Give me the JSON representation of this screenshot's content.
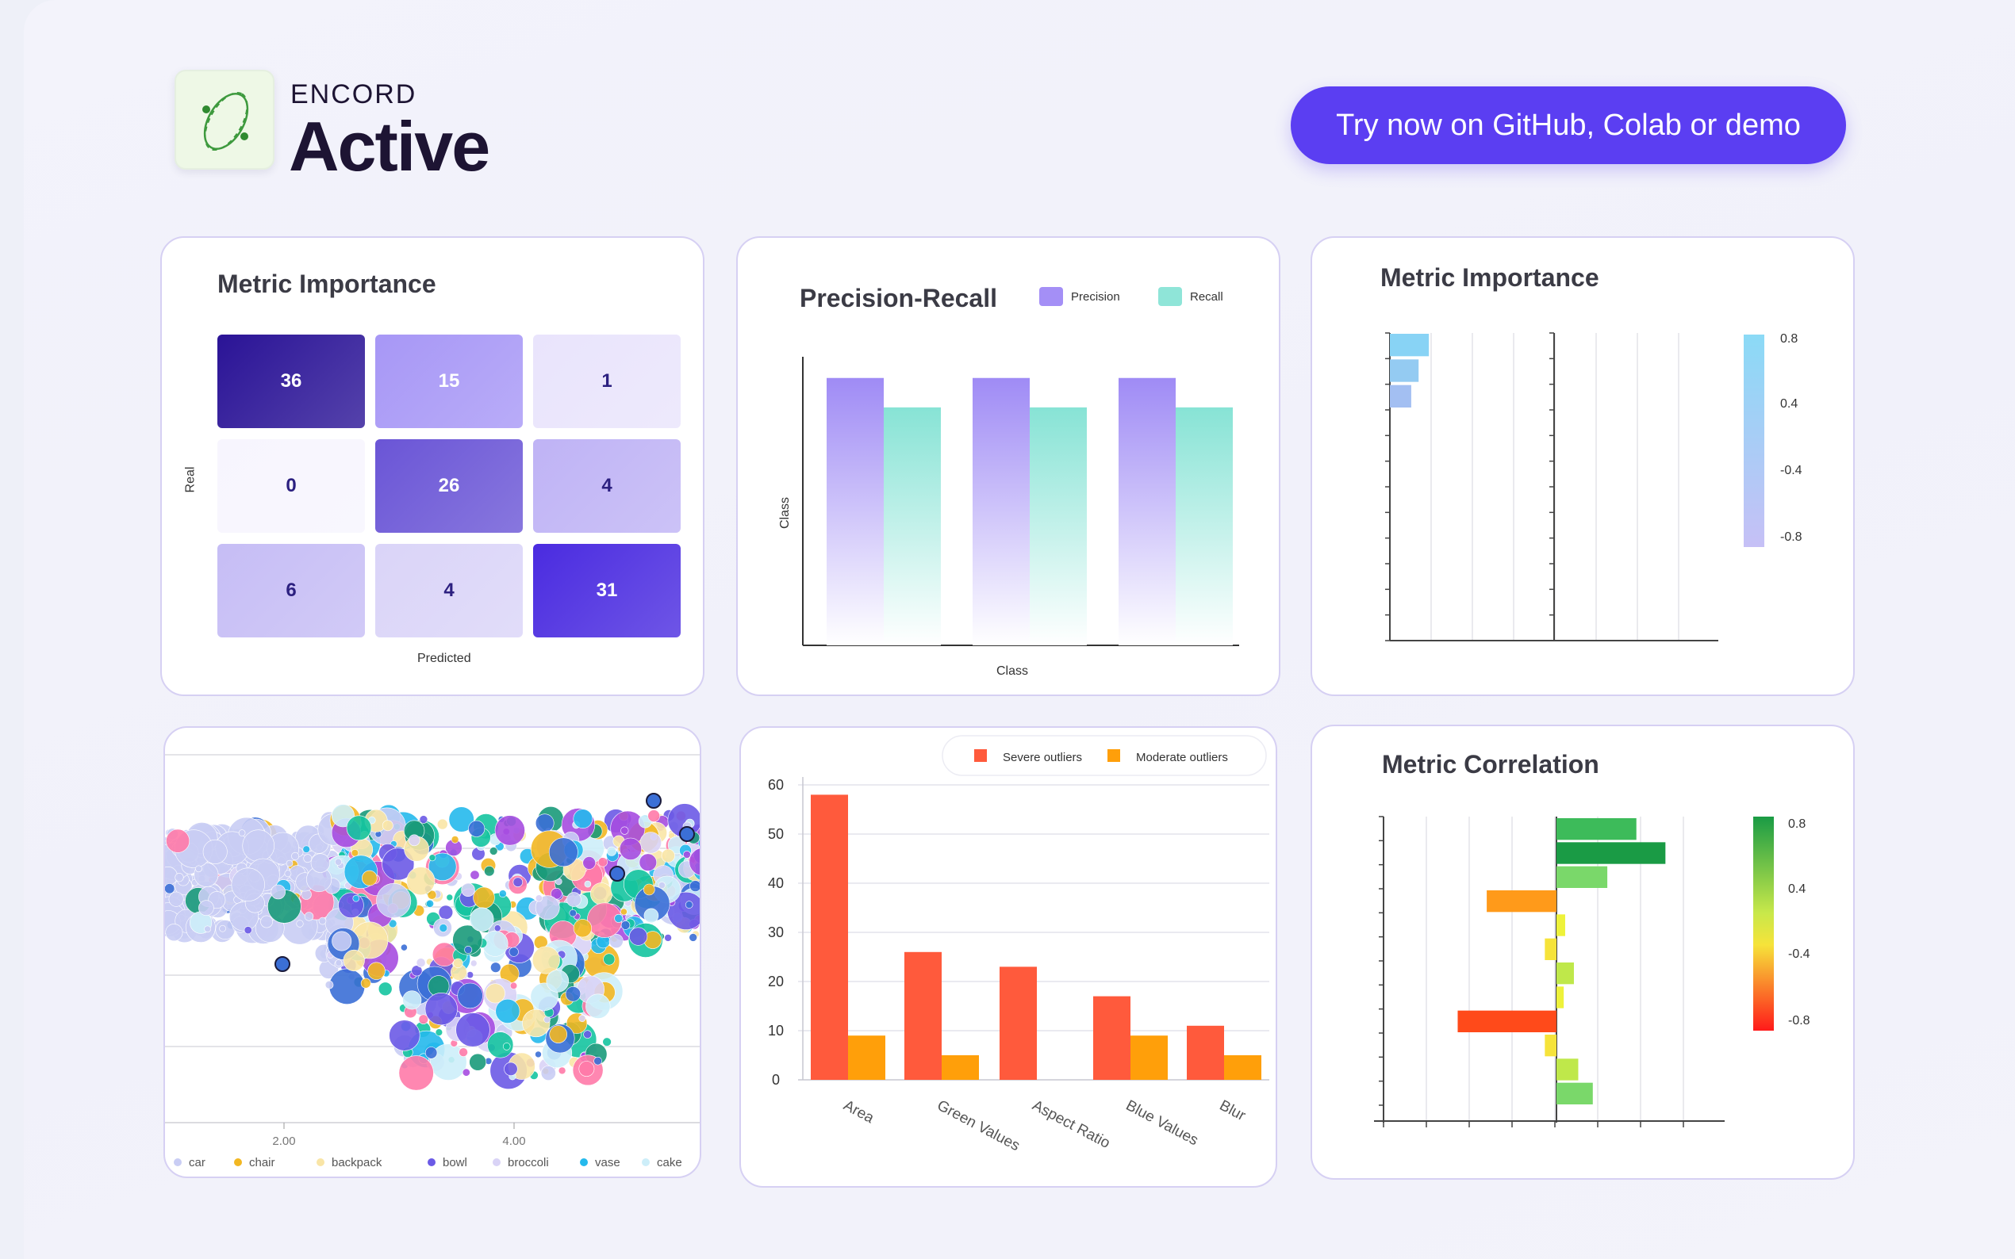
{
  "header": {
    "brand_small": "ENCORD",
    "brand_big": "Active",
    "cta_label": "Try now on GitHub, Colab or demo"
  },
  "confusion_card": {
    "title": "Metric Importance",
    "xlabel": "Predicted",
    "ylabel": "Real",
    "cells": [
      {
        "value": "36",
        "bg": "#2a1396",
        "fg": "#ffffff"
      },
      {
        "value": "15",
        "bg": "#a797f6",
        "fg": "#ffffff"
      },
      {
        "value": "1",
        "bg": "#e9e4fc",
        "fg": "#2c2080"
      },
      {
        "value": "0",
        "bg": "#f7f5fe",
        "fg": "#2c2080"
      },
      {
        "value": "26",
        "bg": "#6a55d6",
        "fg": "#ffffff"
      },
      {
        "value": "4",
        "bg": "#bfb3f5",
        "fg": "#2c2080"
      },
      {
        "value": "6",
        "bg": "#c6bdf5",
        "fg": "#2c2080"
      },
      {
        "value": "4",
        "bg": "#dad4f8",
        "fg": "#2c2080"
      },
      {
        "value": "31",
        "bg": "#4a2be0",
        "fg": "#ffffff"
      }
    ]
  },
  "pr_card": {
    "title": "Precision-Recall",
    "xlabel": "Class",
    "ylabel": "Class",
    "legend": [
      {
        "label": "Precision",
        "color": "#a48ff6"
      },
      {
        "label": "Recall",
        "color": "#8fe5d8"
      }
    ]
  },
  "importance_card": {
    "title": "Metric Importance",
    "colorbar_ticks": [
      "0.8",
      "0.4",
      "-0.4",
      "-0.8"
    ]
  },
  "scatter_card": {
    "xticks": [
      "2.00",
      "4.00"
    ],
    "legend": [
      {
        "label": "car",
        "color": "#c9cdf4"
      },
      {
        "label": "chair",
        "color": "#f2b722"
      },
      {
        "label": "backpack",
        "color": "#f9e5a6"
      },
      {
        "label": "bowl",
        "color": "#6b5ae6"
      },
      {
        "label": "broccoli",
        "color": "#d9d3f6"
      },
      {
        "label": "vase",
        "color": "#25b9ec"
      },
      {
        "label": "cake",
        "color": "#cdeef9"
      }
    ]
  },
  "outliers_card": {
    "legend": [
      {
        "label": "Severe outliers",
        "color": "#ff5a3c"
      },
      {
        "label": "Moderate outliers",
        "color": "#ff9f0a"
      }
    ],
    "yticks": [
      "0",
      "10",
      "20",
      "30",
      "40",
      "50",
      "60"
    ]
  },
  "correlation_card": {
    "title": "Metric Correlation",
    "colorbar_ticks": [
      "0.8",
      "0.4",
      "-0.4",
      "-0.8"
    ]
  },
  "chart_data": [
    {
      "type": "heatmap",
      "title": "Metric Importance",
      "xlabel": "Predicted",
      "ylabel": "Real",
      "values": [
        [
          36,
          15,
          1
        ],
        [
          0,
          26,
          4
        ],
        [
          6,
          4,
          31
        ]
      ]
    },
    {
      "type": "bar",
      "title": "Precision-Recall",
      "xlabel": "Class",
      "ylabel": "Class",
      "categories": [
        "",
        "",
        ""
      ],
      "series": [
        {
          "name": "Precision",
          "values": [
            1.0,
            1.0,
            1.0
          ]
        },
        {
          "name": "Recall",
          "values": [
            0.89,
            0.89,
            0.89
          ]
        }
      ],
      "ylim": [
        0,
        1.02
      ]
    },
    {
      "type": "bar",
      "title": "Metric Importance",
      "orientation": "horizontal",
      "values": [
        0.95,
        0.7,
        0.52,
        0,
        0,
        0,
        0,
        0,
        0,
        0,
        0,
        0
      ],
      "xlim": [
        -2,
        2
      ],
      "colorbar": [
        "0.8",
        "0.4",
        "-0.4",
        "-0.8"
      ]
    },
    {
      "type": "scatter",
      "xticks": [
        "2.00",
        "4.00"
      ],
      "series": [
        {
          "name": "car"
        },
        {
          "name": "chair"
        },
        {
          "name": "backpack"
        },
        {
          "name": "bowl"
        },
        {
          "name": "broccoli"
        },
        {
          "name": "vase"
        },
        {
          "name": "cake"
        }
      ]
    },
    {
      "type": "bar",
      "categories": [
        "Area",
        "Green Values",
        "Aspect Ratio",
        "Blue Values",
        "Blur"
      ],
      "series": [
        {
          "name": "Severe outliers",
          "values": [
            58,
            26,
            23,
            17,
            11
          ]
        },
        {
          "name": "Moderate outliers",
          "values": [
            9,
            5,
            0,
            9,
            5
          ]
        }
      ],
      "ylim": [
        0,
        60
      ]
    },
    {
      "type": "bar",
      "title": "Metric Correlation",
      "orientation": "horizontal",
      "values": [
        0.55,
        0.75,
        0.35,
        -0.48,
        0.06,
        -0.08,
        0.12,
        0.05,
        -0.68,
        -0.08,
        0.15,
        0.25
      ],
      "xlim": [
        -1,
        1
      ],
      "colorbar": [
        "0.8",
        "0.4",
        "-0.4",
        "-0.8"
      ]
    }
  ]
}
